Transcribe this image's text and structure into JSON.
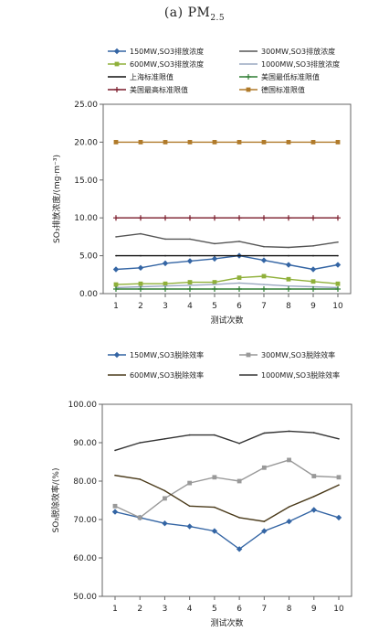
{
  "title": {
    "prefix": "(a) PM",
    "sub": "2.5"
  },
  "chart_data": [
    {
      "type": "line",
      "xlabel": "测试次数",
      "ylabel": "SO₃排放浓度/(mg·m⁻³)",
      "ylim": [
        0,
        25
      ],
      "y_ticks": [
        "0.00",
        "5.00",
        "10.00",
        "15.00",
        "20.00",
        "25.00"
      ],
      "categories": [
        "1",
        "2",
        "3",
        "4",
        "5",
        "6",
        "7",
        "8",
        "9",
        "10"
      ],
      "grid": false,
      "legend_position": "top",
      "series": [
        {
          "name": "150MW,SO3排放浓度",
          "color": "#3465a4",
          "marker": "diamond",
          "values": [
            3.2,
            3.4,
            4.0,
            4.3,
            4.6,
            5.0,
            4.4,
            3.8,
            3.2,
            3.8
          ]
        },
        {
          "name": "300MW,SO3排放浓度",
          "color": "#555555",
          "marker": "none",
          "values": [
            7.5,
            7.9,
            7.2,
            7.2,
            6.6,
            6.9,
            6.2,
            6.1,
            6.3,
            6.8
          ]
        },
        {
          "name": "600MW,SO3排放浓度",
          "color": "#8fb03a",
          "marker": "square",
          "values": [
            1.2,
            1.3,
            1.3,
            1.5,
            1.5,
            2.1,
            2.3,
            1.9,
            1.6,
            1.3
          ]
        },
        {
          "name": "1000MW,SO3排放浓度",
          "color": "#9aa8c0",
          "marker": "none",
          "values": [
            0.8,
            0.9,
            1.0,
            1.1,
            1.2,
            1.4,
            1.2,
            1.0,
            0.9,
            0.8
          ]
        },
        {
          "name": "上海标准限值",
          "color": "#111111",
          "marker": "none",
          "values": [
            5,
            5,
            5,
            5,
            5,
            5,
            5,
            5,
            5,
            5
          ]
        },
        {
          "name": "美国最低标准限值",
          "color": "#2e7d32",
          "marker": "plus",
          "values": [
            0.6,
            0.6,
            0.6,
            0.6,
            0.6,
            0.6,
            0.6,
            0.6,
            0.6,
            0.6
          ]
        },
        {
          "name": "美国最高标准限值",
          "color": "#7a1a2a",
          "marker": "plus",
          "values": [
            10,
            10,
            10,
            10,
            10,
            10,
            10,
            10,
            10,
            10
          ]
        },
        {
          "name": "德国标准限值",
          "color": "#b07a2a",
          "marker": "square",
          "values": [
            20,
            20,
            20,
            20,
            20,
            20,
            20,
            20,
            20,
            20
          ]
        }
      ]
    },
    {
      "type": "line",
      "xlabel": "测试次数",
      "ylabel": "SO₃脱除效率/(%)",
      "ylim": [
        50,
        100
      ],
      "y_ticks": [
        "50.00",
        "60.00",
        "70.00",
        "80.00",
        "90.00",
        "100.00"
      ],
      "categories": [
        "1",
        "2",
        "3",
        "4",
        "5",
        "6",
        "7",
        "8",
        "9",
        "10"
      ],
      "grid": false,
      "legend_position": "top",
      "series": [
        {
          "name": "150MW,SO3脱除效率",
          "color": "#3465a4",
          "marker": "diamond",
          "values": [
            72,
            70.5,
            69,
            68.2,
            67,
            62.3,
            67,
            69.5,
            72.5,
            70.5
          ]
        },
        {
          "name": "300MW,SO3脱除效率",
          "color": "#999999",
          "marker": "square",
          "values": [
            73.5,
            70.5,
            75.5,
            79.5,
            81,
            80,
            83.5,
            85.5,
            81.3,
            81
          ]
        },
        {
          "name": "600MW,SO3脱除效率",
          "color": "#4a3a1a",
          "marker": "none",
          "values": [
            81.5,
            80.5,
            77.5,
            73.5,
            73.2,
            70.5,
            69.5,
            73.3,
            76,
            79
          ]
        },
        {
          "name": "1000MW,SO3脱除效率",
          "color": "#333333",
          "marker": "none",
          "values": [
            88,
            90,
            91,
            92,
            92,
            89.8,
            92.5,
            93,
            92.6,
            91
          ]
        }
      ]
    }
  ]
}
